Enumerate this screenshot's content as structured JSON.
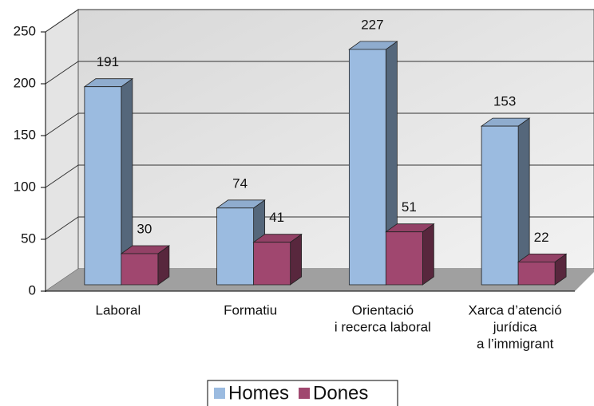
{
  "chart_data": {
    "type": "bar3d",
    "categories": [
      [
        "Laboral"
      ],
      [
        "Formatiu"
      ],
      [
        "Orientació",
        "i recerca laboral"
      ],
      [
        "Xarca d’atenció",
        "jurídica",
        "a l’immigrant"
      ]
    ],
    "series": [
      {
        "name": "Homes",
        "color": "#9bbbe0",
        "values": [
          191,
          74,
          227,
          153
        ]
      },
      {
        "name": "Dones",
        "color": "#a0476f",
        "values": [
          30,
          41,
          51,
          22
        ]
      }
    ],
    "ylim": [
      0,
      250
    ],
    "yticks": [
      0,
      50,
      100,
      150,
      200,
      250
    ],
    "grid": true,
    "legend": "bottom"
  }
}
